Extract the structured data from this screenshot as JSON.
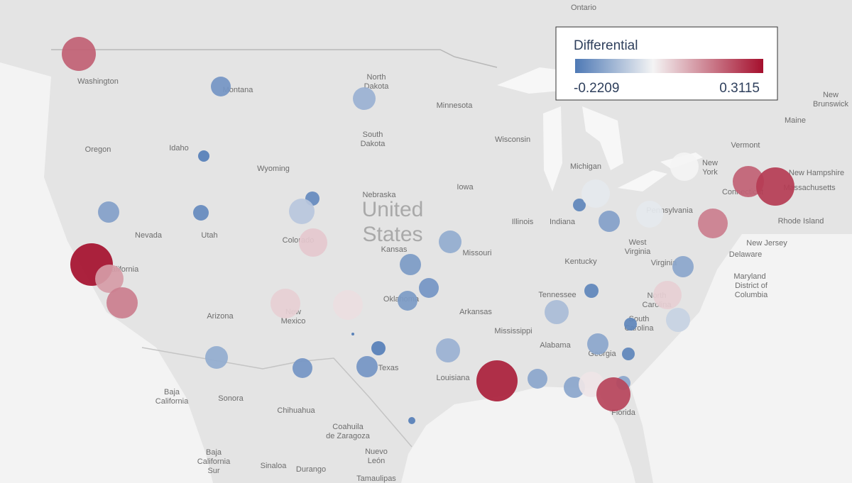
{
  "legend": {
    "title": "Differential",
    "min": -0.2209,
    "max": 0.3115,
    "colors": [
      "#4e79b5",
      "#f4f4f4",
      "#a50f2d"
    ]
  },
  "labels": [
    [
      "Ontario"
    ],
    [
      "Washington"
    ],
    [
      "Montana"
    ],
    [
      "North",
      "Dakota"
    ],
    [
      "Minnesota"
    ],
    [
      "Wisconsin"
    ],
    [
      "South",
      "Dakota"
    ],
    [
      "Oregon"
    ],
    [
      "Idaho"
    ],
    [
      "Wyoming"
    ],
    [
      "Nebraska"
    ],
    [
      "Iowa"
    ],
    [
      "Michigan"
    ],
    [
      "New",
      "York"
    ],
    [
      "Vermont"
    ],
    [
      "New Hampshire"
    ],
    [
      "Massachusetts"
    ],
    [
      "Rhode Island"
    ],
    [
      "Maine"
    ],
    [
      "New",
      "Brunswick"
    ],
    [
      "Nevada"
    ],
    [
      "Utah"
    ],
    [
      "Colorado"
    ],
    [
      "Kansas"
    ],
    [
      "Missouri"
    ],
    [
      "Illinois"
    ],
    [
      "Indiana"
    ],
    [
      "Pennsylvania"
    ],
    [
      "West",
      "Virginia"
    ],
    [
      "Kentucky"
    ],
    [
      "Virginia"
    ],
    [
      "Tennessee"
    ],
    [
      "North",
      "Carolina"
    ],
    [
      "South",
      "Carolina"
    ],
    [
      "Arizona"
    ],
    [
      "New",
      "Mexico"
    ],
    [
      "Oklahoma"
    ],
    [
      "Arkansas"
    ],
    [
      "Texas"
    ],
    [
      "Mississippi"
    ],
    [
      "Alabama"
    ],
    [
      "Georgia"
    ],
    [
      "Louisiana"
    ],
    [
      "Florida"
    ],
    [
      "New Jersey"
    ],
    [
      "Delaware"
    ],
    [
      "Maryland"
    ],
    [
      "District of",
      "Columbia"
    ],
    [
      "Connecticut"
    ],
    [
      "Baja",
      "California"
    ],
    [
      "Sonora"
    ],
    [
      "Chihuahua"
    ],
    [
      "Coahuila",
      "de Zaragoza"
    ],
    [
      "Baja",
      "California",
      "Sur"
    ],
    [
      "Sinaloa"
    ],
    [
      "Durango"
    ],
    [
      "Nuevo",
      "León"
    ],
    [
      "Tamaulipas"
    ],
    [
      "California"
    ]
  ],
  "country": [
    "United",
    "States"
  ],
  "bubbles": {
    "values": [
      0.2,
      -0.17,
      -0.12,
      -0.21,
      -0.15,
      -0.19,
      -0.19,
      -0.08,
      0.06,
      0.31,
      0.12,
      0.16,
      0.05,
      0.03,
      -0.13,
      -0.17,
      -0.22,
      -0.21,
      -0.17,
      -0.21,
      -0.13,
      -0.16,
      -0.17,
      -0.16,
      -0.12,
      0.29,
      -0.14,
      -0.14,
      0.02,
      -0.14,
      0.24,
      -0.1,
      -0.2,
      -0.14,
      -0.2,
      -0.2,
      -0.06,
      0.05,
      -0.14,
      -0.2,
      -0.02,
      -0.15,
      -0.02,
      0.0,
      0.16,
      0.2,
      0.25
    ]
  }
}
